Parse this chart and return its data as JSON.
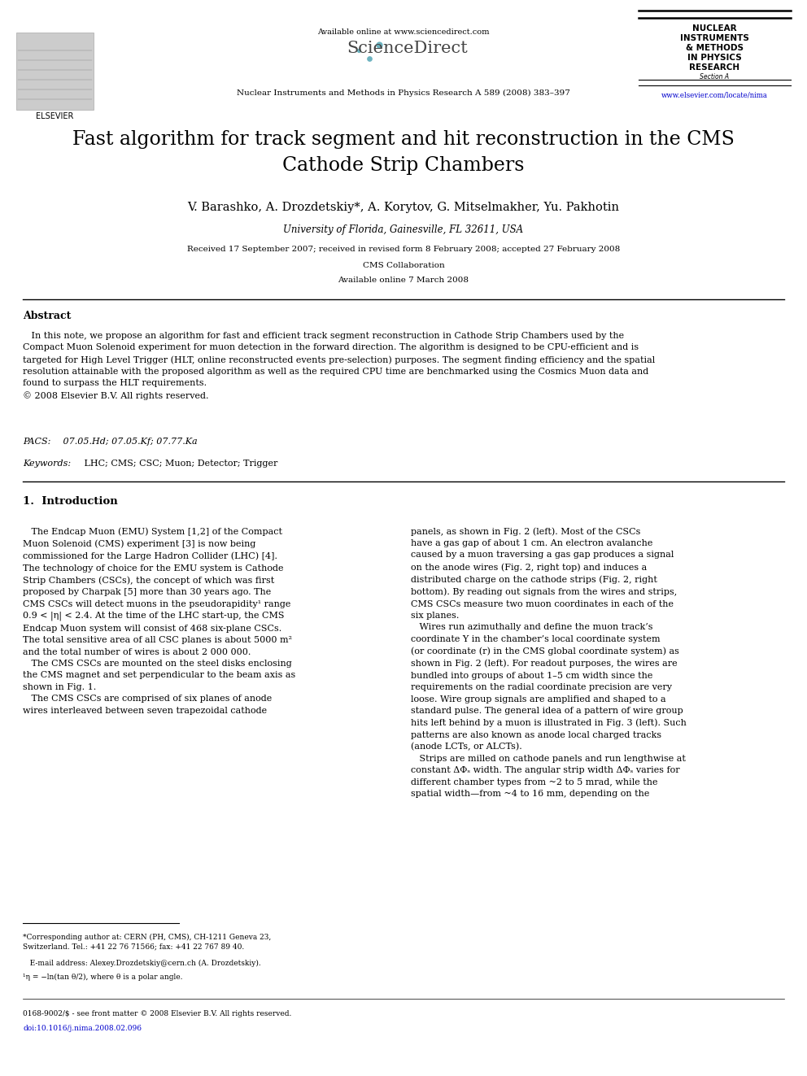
{
  "background_color": "#ffffff",
  "page_width": 9.92,
  "page_height": 13.23,
  "header": {
    "available_online_text": "Available online at www.sciencedirect.com",
    "sciencedirect_text": "ScienceDirect",
    "elsevier_text": "ELSEVIER",
    "journal_line": "Nuclear Instruments and Methods in Physics Research A 589 (2008) 383–397",
    "journal_box_lines": [
      "NUCLEAR",
      "INSTRUMENTS",
      "& METHODS",
      "IN PHYSICS",
      "RESEARCH",
      "Section A"
    ],
    "url_text": "www.elsevier.com/locate/nima"
  },
  "title": "Fast algorithm for track segment and hit reconstruction in the CMS\nCathode Strip Chambers",
  "authors": "V. Barashko, A. Drozdetskiy*, A. Korytov, G. Mitselmakher, Yu. Pakhotin",
  "affiliation": "University of Florida, Gainesville, FL 32611, USA",
  "received": "Received 17 September 2007; received in revised form 8 February 2008; accepted 27 February 2008",
  "collab": "CMS Collaboration",
  "available_online": "Available online 7 March 2008",
  "abstract_title": "Abstract",
  "abstract_text": "   In this note, we propose an algorithm for fast and efficient track segment reconstruction in Cathode Strip Chambers used by the\nCompact Muon Solenoid experiment for muon detection in the forward direction. The algorithm is designed to be CPU-efficient and is\ntargeted for High Level Trigger (HLT, online reconstructed events pre-selection) purposes. The segment finding efficiency and the spatial\nresolution attainable with the proposed algorithm as well as the required CPU time are benchmarked using the Cosmics Muon data and\nfound to surpass the HLT requirements.\n© 2008 Elsevier B.V. All rights reserved.",
  "pacs_label": "PACS:",
  "pacs_text": " 07.05.Hd; 07.05.Kf; 07.77.Ka",
  "keywords_label": "Keywords:",
  "keywords_text": " LHC; CMS; CSC; Muon; Detector; Trigger",
  "section1_title": "1.  Introduction",
  "col1_text": "   The Endcap Muon (EMU) System [1,2] of the Compact\nMuon Solenoid (CMS) experiment [3] is now being\ncommissioned for the Large Hadron Collider (LHC) [4].\nThe technology of choice for the EMU system is Cathode\nStrip Chambers (CSCs), the concept of which was first\nproposed by Charpak [5] more than 30 years ago. The\nCMS CSCs will detect muons in the pseudorapidity¹ range\n0.9 < |η| < 2.4. At the time of the LHC start-up, the CMS\nEndcap Muon system will consist of 468 six-plane CSCs.\nThe total sensitive area of all CSC planes is about 5000 m²\nand the total number of wires is about 2 000 000.\n   The CMS CSCs are mounted on the steel disks enclosing\nthe CMS magnet and set perpendicular to the beam axis as\nshown in Fig. 1.\n   The CMS CSCs are comprised of six planes of anode\nwires interleaved between seven trapezoidal cathode",
  "col2_text": "panels, as shown in Fig. 2 (left). Most of the CSCs\nhave a gas gap of about 1 cm. An electron avalanche\ncaused by a muon traversing a gas gap produces a signal\non the anode wires (Fig. 2, right top) and induces a\ndistributed charge on the cathode strips (Fig. 2, right\nbottom). By reading out signals from the wires and strips,\nCMS CSCs measure two muon coordinates in each of the\nsix planes.\n   Wires run azimuthally and define the muon track’s\ncoordinate Y in the chamber’s local coordinate system\n(or coordinate (r) in the CMS global coordinate system) as\nshown in Fig. 2 (left). For readout purposes, the wires are\nbundled into groups of about 1–5 cm width since the\nrequirements on the radial coordinate precision are very\nloose. Wire group signals are amplified and shaped to a\nstandard pulse. The general idea of a pattern of wire group\nhits left behind by a muon is illustrated in Fig. 3 (left). Such\npatterns are also known as anode local charged tracks\n(anode LCTs, or ALCTs).\n   Strips are milled on cathode panels and run lengthwise at\nconstant ΔΦₛ width. The angular strip width ΔΦₛ varies for\ndifferent chamber types from ~2 to 5 mrad, while the\nspatial width—from ~4 to 16 mm, depending on the",
  "footnote_star": "*Corresponding author at: CERN (PH, CMS), CH-1211 Geneva 23,\nSwitzerland. Tel.: +41 22 76 71566; fax: +41 22 767 89 40.",
  "footnote_email": "   E-mail address: Alexey.Drozdetskiy@cern.ch (A. Drozdetskiy).",
  "footnote_1": "¹η = −ln(tan θ/2), where θ is a polar angle.",
  "footer_left": "0168-9002/$ - see front matter © 2008 Elsevier B.V. All rights reserved.",
  "footer_doi": "doi:10.1016/j.nima.2008.02.096"
}
